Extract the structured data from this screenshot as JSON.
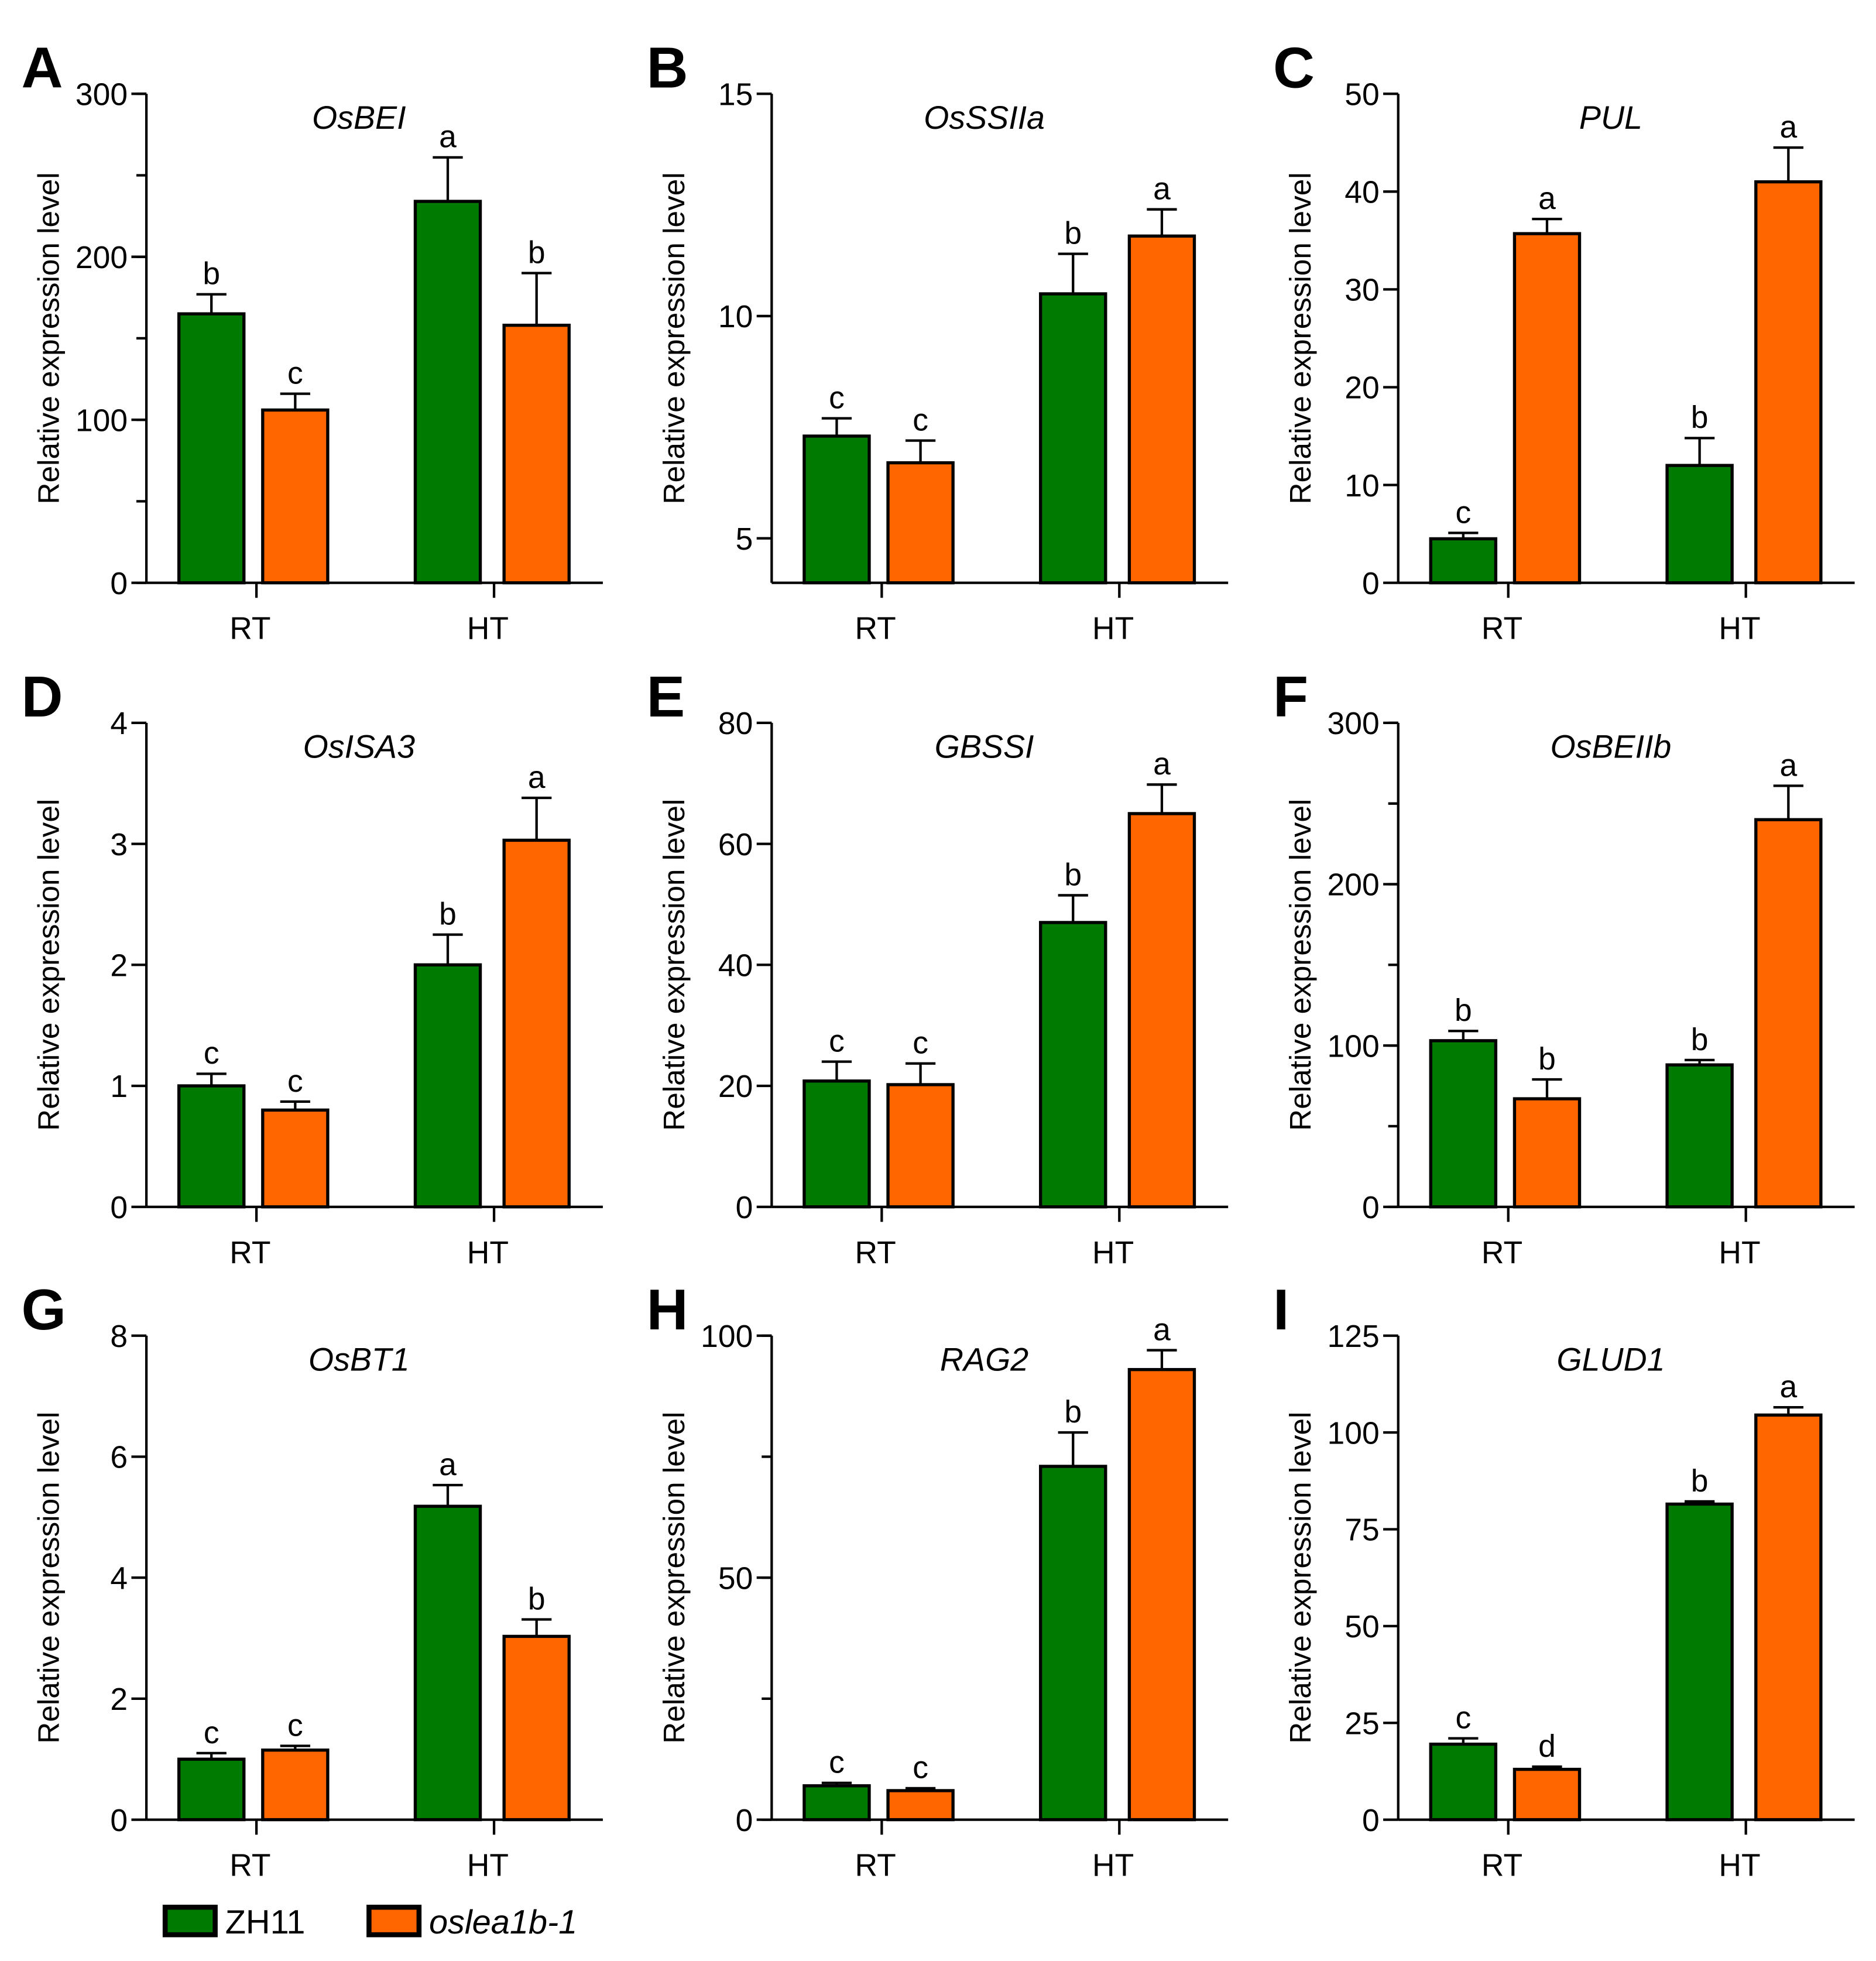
{
  "colors": {
    "ZH11": "#007a00",
    "oslea1b-1": "#ff6600"
  },
  "legend": [
    {
      "label": "ZH11",
      "italic": false
    },
    {
      "label": "oslea1b-1",
      "italic": true
    }
  ],
  "chart_data": [
    {
      "panel": "A",
      "type": "bar",
      "title": "OsBEI",
      "ylabel": "Relative expression level",
      "categories": [
        "RT",
        "HT"
      ],
      "ylim": [
        0,
        300
      ],
      "yticks": [
        0,
        100,
        200,
        300
      ],
      "minor": 50,
      "series": [
        {
          "name": "ZH11",
          "values": [
            165,
            234
          ],
          "errors": [
            12,
            27
          ],
          "letters": [
            "b",
            "a"
          ]
        },
        {
          "name": "oslea1b-1",
          "values": [
            106,
            158
          ],
          "errors": [
            10,
            32
          ],
          "letters": [
            "c",
            "b"
          ]
        }
      ]
    },
    {
      "panel": "B",
      "type": "bar",
      "title": "OsSSIIa",
      "ylabel": "Relative expression level",
      "categories": [
        "RT",
        "HT"
      ],
      "ylim": [
        4,
        15
      ],
      "yticks": [
        5,
        10,
        15
      ],
      "minor": null,
      "series": [
        {
          "name": "ZH11",
          "values": [
            7.3,
            10.5
          ],
          "errors": [
            0.4,
            0.9
          ],
          "letters": [
            "c",
            "b"
          ]
        },
        {
          "name": "oslea1b-1",
          "values": [
            6.7,
            11.8
          ],
          "errors": [
            0.5,
            0.6
          ],
          "letters": [
            "c",
            "a"
          ]
        }
      ]
    },
    {
      "panel": "C",
      "type": "bar",
      "title": "PUL",
      "ylabel": "Relative expression level",
      "categories": [
        "RT",
        "HT"
      ],
      "ylim": [
        0,
        50
      ],
      "yticks": [
        0,
        10,
        20,
        30,
        40,
        50
      ],
      "minor": null,
      "series": [
        {
          "name": "ZH11",
          "values": [
            4.5,
            12
          ],
          "errors": [
            0.6,
            2.8
          ],
          "letters": [
            "c",
            "b"
          ]
        },
        {
          "name": "oslea1b-1",
          "values": [
            35.7,
            41
          ],
          "errors": [
            1.5,
            3.5
          ],
          "letters": [
            "a",
            "a"
          ]
        }
      ]
    },
    {
      "panel": "D",
      "type": "bar",
      "title": "OsISA3",
      "ylabel": "Relative expression level",
      "categories": [
        "RT",
        "HT"
      ],
      "ylim": [
        0,
        4
      ],
      "yticks": [
        0,
        1,
        2,
        3,
        4
      ],
      "minor": null,
      "series": [
        {
          "name": "ZH11",
          "values": [
            1.0,
            2.0
          ],
          "errors": [
            0.1,
            0.25
          ],
          "letters": [
            "c",
            "b"
          ]
        },
        {
          "name": "oslea1b-1",
          "values": [
            0.8,
            3.03
          ],
          "errors": [
            0.07,
            0.35
          ],
          "letters": [
            "c",
            "a"
          ]
        }
      ]
    },
    {
      "panel": "E",
      "type": "bar",
      "title": "GBSSI",
      "ylabel": "Relative expression level",
      "categories": [
        "RT",
        "HT"
      ],
      "ylim": [
        0,
        80
      ],
      "yticks": [
        0,
        20,
        40,
        60,
        80
      ],
      "minor": null,
      "series": [
        {
          "name": "ZH11",
          "values": [
            20.8,
            47
          ],
          "errors": [
            3.2,
            4.5
          ],
          "letters": [
            "c",
            "b"
          ]
        },
        {
          "name": "oslea1b-1",
          "values": [
            20.2,
            65
          ],
          "errors": [
            3.5,
            4.8
          ],
          "letters": [
            "c",
            "a"
          ]
        }
      ]
    },
    {
      "panel": "F",
      "type": "bar",
      "title": "OsBEIIb",
      "ylabel": "Relative expression level",
      "categories": [
        "RT",
        "HT"
      ],
      "ylim": [
        0,
        300
      ],
      "yticks": [
        0,
        100,
        200,
        300
      ],
      "minor": 50,
      "series": [
        {
          "name": "ZH11",
          "values": [
            103,
            88
          ],
          "errors": [
            6,
            3
          ],
          "letters": [
            "b",
            "b"
          ]
        },
        {
          "name": "oslea1b-1",
          "values": [
            67,
            240
          ],
          "errors": [
            12,
            21
          ],
          "letters": [
            "b",
            "a"
          ]
        }
      ]
    },
    {
      "panel": "G",
      "type": "bar",
      "title": "OsBT1",
      "ylabel": "Relative expression level",
      "categories": [
        "RT",
        "HT"
      ],
      "ylim": [
        0,
        8
      ],
      "yticks": [
        0,
        2,
        4,
        6,
        8
      ],
      "minor": null,
      "series": [
        {
          "name": "ZH11",
          "values": [
            1.0,
            5.18
          ],
          "errors": [
            0.1,
            0.35
          ],
          "letters": [
            "c",
            "a"
          ]
        },
        {
          "name": "oslea1b-1",
          "values": [
            1.15,
            3.03
          ],
          "errors": [
            0.07,
            0.28
          ],
          "letters": [
            "c",
            "b"
          ]
        }
      ]
    },
    {
      "panel": "H",
      "type": "bar",
      "title": "RAG2",
      "ylabel": "Relative expression level",
      "categories": [
        "RT",
        "HT"
      ],
      "ylim": [
        0,
        100
      ],
      "yticks": [
        0,
        50,
        100
      ],
      "minor": 25,
      "series": [
        {
          "name": "ZH11",
          "values": [
            7,
            73
          ],
          "errors": [
            0.6,
            7
          ],
          "letters": [
            "c",
            "b"
          ]
        },
        {
          "name": "oslea1b-1",
          "values": [
            6,
            93
          ],
          "errors": [
            0.5,
            4
          ],
          "letters": [
            "c",
            "a"
          ]
        }
      ]
    },
    {
      "panel": "I",
      "type": "bar",
      "title": "GLUD1",
      "ylabel": "Relative expression level",
      "categories": [
        "RT",
        "HT"
      ],
      "ylim": [
        0,
        125
      ],
      "yticks": [
        0,
        25,
        50,
        75,
        100,
        125
      ],
      "minor": null,
      "series": [
        {
          "name": "ZH11",
          "values": [
            19.5,
            81.5
          ],
          "errors": [
            1.5,
            0.7
          ],
          "letters": [
            "c",
            "b"
          ]
        },
        {
          "name": "oslea1b-1",
          "values": [
            13,
            104.5
          ],
          "errors": [
            0.7,
            2
          ],
          "letters": [
            "d",
            "a"
          ]
        }
      ]
    }
  ]
}
